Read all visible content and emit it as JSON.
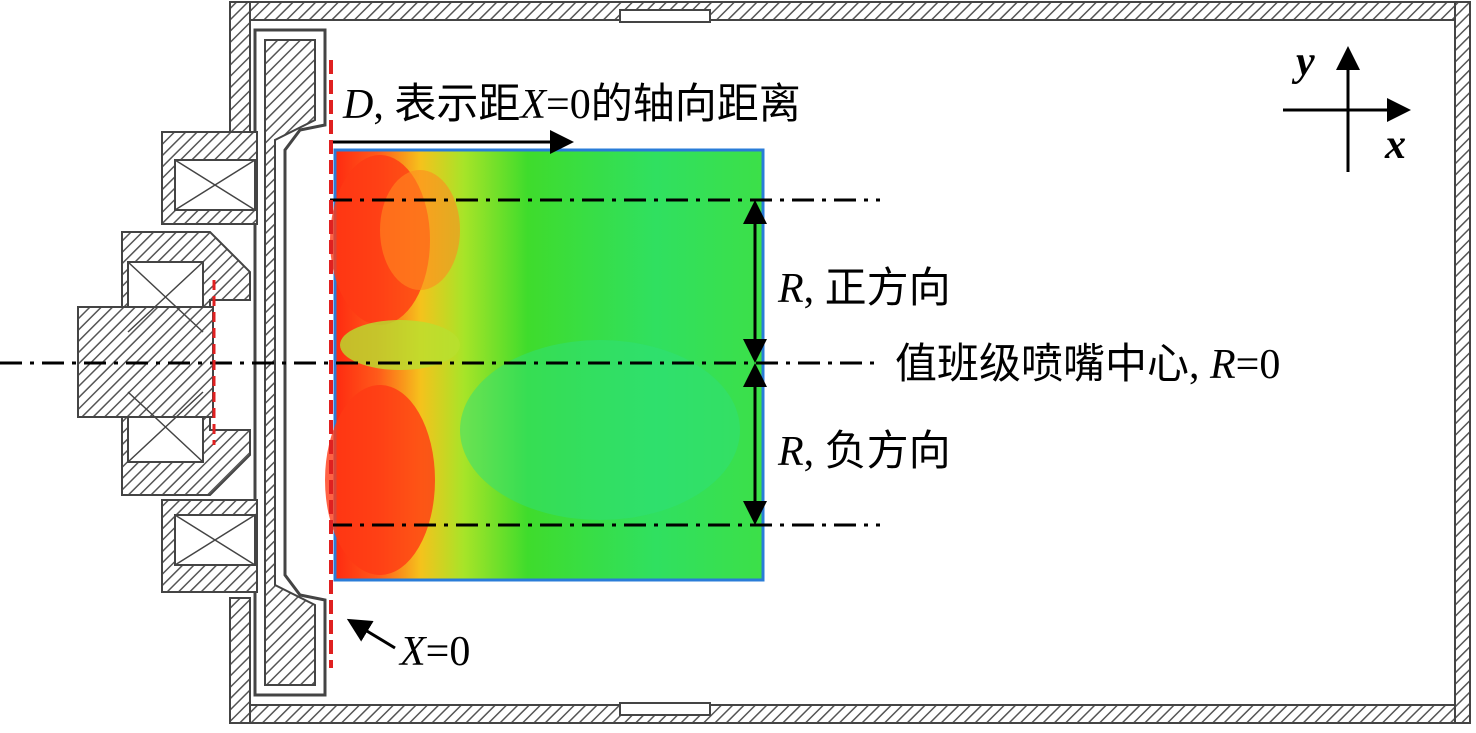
{
  "labels": {
    "axial": {
      "symbol": "D",
      "text": ", 表示距",
      "symbol2": "X",
      "text2": "=0的轴向距离"
    },
    "r_positive": {
      "symbol": "R",
      "text": ", 正方向"
    },
    "center": {
      "text": "值班级喷嘴中心, ",
      "symbol": "R",
      "text2": "=0"
    },
    "r_negative": {
      "symbol": "R",
      "text": ", 负方向"
    },
    "x_zero": {
      "symbol": "X",
      "text": "=0"
    },
    "axis_y": "y",
    "axis_x": "x"
  }
}
